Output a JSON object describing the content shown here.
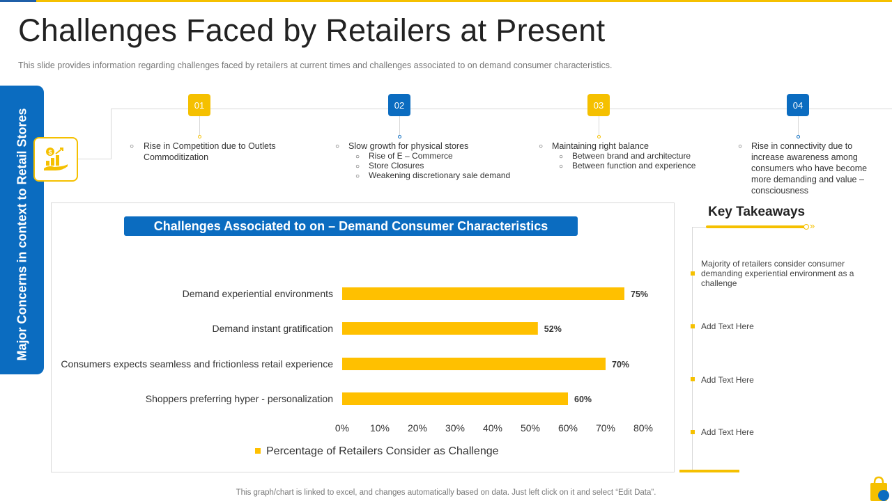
{
  "slide": {
    "title": "Challenges Faced by Retailers at Present",
    "subtitle": "This slide provides information regarding challenges faced by retailers at current times and challenges associated to on demand consumer characteristics.",
    "side_tab_label": "Major Concerns in context to Retail Stores",
    "hub_icon": "growth-chart-hand-icon",
    "footer_note": "This graph/chart is linked to excel, and changes automatically based on data. Just left click on it and select “Edit Data”."
  },
  "concerns": [
    {
      "number": "01",
      "color": "#f5c000",
      "text": "Rise in Competition due to Outlets Commoditization",
      "subpoints": []
    },
    {
      "number": "02",
      "color": "#0b6cc0",
      "text": "Slow growth for physical stores",
      "subpoints": [
        "Rise of E – Commerce",
        "Store Closures",
        "Weakening discretionary sale demand"
      ]
    },
    {
      "number": "03",
      "color": "#f5c000",
      "text": "Maintaining right balance",
      "subpoints": [
        "Between brand and architecture",
        "Between function and experience"
      ]
    },
    {
      "number": "04",
      "color": "#0b6cc0",
      "text": "Rise in connectivity due to increase awareness among consumers who have become more demanding and value – consciousness",
      "subpoints": []
    }
  ],
  "chart_data": {
    "type": "bar",
    "orientation": "horizontal",
    "title": "Challenges Associated to on – Demand Consumer Characteristics",
    "categories": [
      "Demand experiential environments",
      "Demand instant gratification",
      "Consumers expects seamless and frictionless retail experience",
      "Shoppers preferring hyper - personalization"
    ],
    "series": [
      {
        "name": "Percentage of Retailers Consider as Challenge",
        "values": [
          75,
          52,
          70,
          60
        ],
        "color": "#ffc000"
      }
    ],
    "data_labels": [
      "75%",
      "52%",
      "70%",
      "60%"
    ],
    "xlim": [
      0,
      80
    ],
    "xticks": [
      "0%",
      "10%",
      "20%",
      "30%",
      "40%",
      "50%",
      "60%",
      "70%",
      "80%"
    ],
    "grid": false,
    "legend_position": "bottom"
  },
  "key_takeaways": {
    "title": "Key Takeaways",
    "items": [
      "Majority of retailers consider consumer demanding experiential environment as a challenge",
      "Add Text Here",
      "Add Text Here",
      "Add Text Here"
    ]
  }
}
